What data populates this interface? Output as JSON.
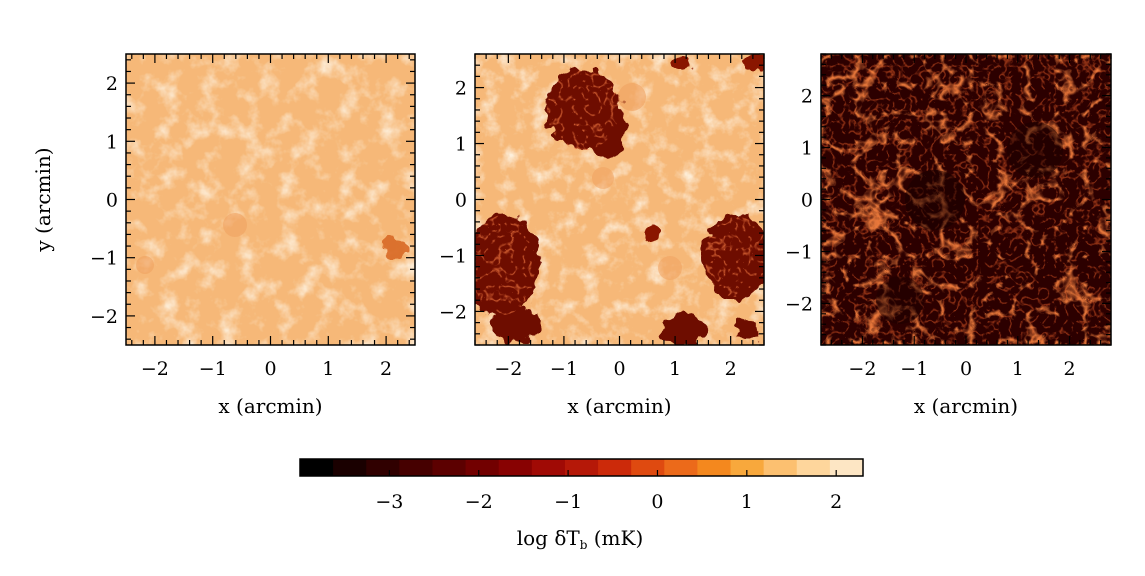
{
  "chart_data": [
    {
      "type": "heatmap",
      "panel": 1,
      "xlabel": "x (arcmin)",
      "ylabel": "y (arcmin)",
      "xlim": [
        -2.5,
        2.5
      ],
      "ylim": [
        -2.5,
        2.5
      ],
      "xticks": [
        "−2",
        "−1",
        "0",
        "1",
        "2"
      ],
      "yticks": [
        "−2",
        "−1",
        "0",
        "1",
        "2"
      ],
      "map_description_level": "mostly bright orange (log δTb ≈ 1–1.5) with a small dark patch near x=2, y=−1"
    },
    {
      "type": "heatmap",
      "panel": 2,
      "xlabel": "x (arcmin)",
      "ylabel": "",
      "xlim": [
        -2.6,
        2.6
      ],
      "ylim": [
        -2.6,
        2.6
      ],
      "xticks": [
        "−2",
        "−1",
        "0",
        "1",
        "2"
      ],
      "yticks": [
        "−2",
        "−1",
        "0",
        "1",
        "2"
      ],
      "map_description_level": "bright orange field with large dark-red ionized bubbles (log δTb ≈ −2 to −1)"
    },
    {
      "type": "heatmap",
      "panel": 3,
      "xlabel": "x (arcmin)",
      "ylabel": "",
      "xlim": [
        -2.8,
        2.8
      ],
      "ylim": [
        -2.8,
        2.8
      ],
      "xticks": [
        "−2",
        "−1",
        "0",
        "1",
        "2"
      ],
      "yticks": [
        "−2",
        "−1",
        "0",
        "1",
        "2"
      ],
      "map_description_level": "mostly dark (log δTb ≈ −3) with bright filamentary web"
    }
  ],
  "colorbar": {
    "label_prefix": "log δT",
    "label_sub": "b",
    "label_suffix": " (mK)",
    "range": [
      -4,
      2.3
    ],
    "ticks": [
      {
        "value": -3,
        "label": "−3"
      },
      {
        "value": -2,
        "label": "−2"
      },
      {
        "value": -1,
        "label": "−1"
      },
      {
        "value": 0,
        "label": "0"
      },
      {
        "value": 1,
        "label": "1"
      },
      {
        "value": 2,
        "label": "2"
      }
    ],
    "colors": [
      "#000000",
      "#1a0000",
      "#300000",
      "#460000",
      "#5c0000",
      "#720000",
      "#880202",
      "#a00a05",
      "#b51808",
      "#cc2a0a",
      "#df4a10",
      "#ec6a1a",
      "#f4881e",
      "#f8a83c",
      "#fcc070",
      "#fed69c",
      "#fde6c4"
    ]
  }
}
